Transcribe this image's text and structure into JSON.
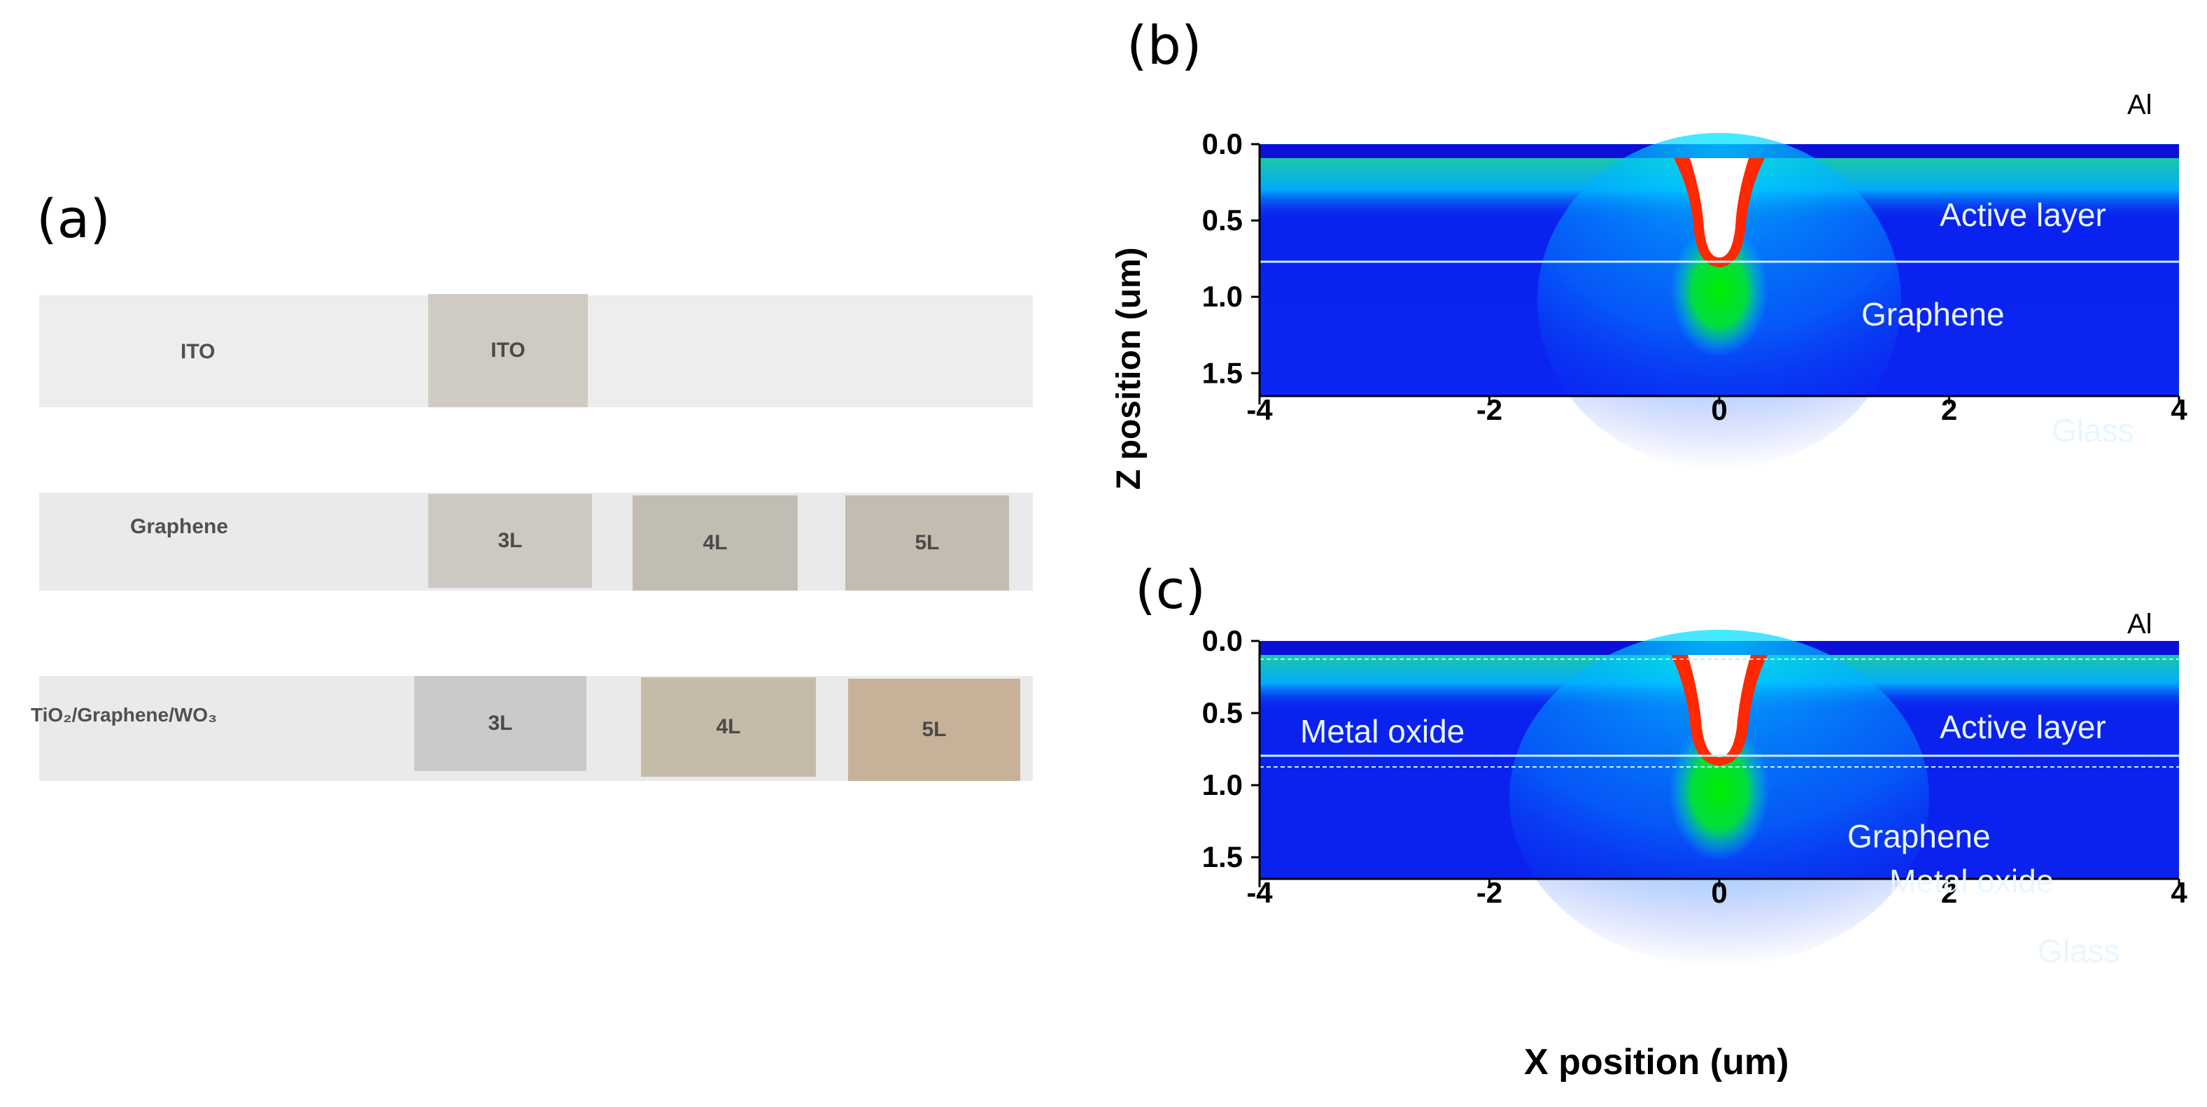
{
  "panels": {
    "a": "(a)",
    "b": "(b)",
    "c": "(c)"
  },
  "photo": {
    "rows": [
      {
        "label": "ITO",
        "samples": [
          "ITO"
        ]
      },
      {
        "label": "Graphene",
        "samples": [
          "3L",
          "4L",
          "5L"
        ]
      },
      {
        "label": "TiO₂/Graphene/WO₃",
        "samples": [
          "3L",
          "4L",
          "5L"
        ]
      }
    ]
  },
  "chart_data": [
    {
      "type": "heatmap",
      "panel": "(b)",
      "ylabel": "Z position (um)",
      "xlim": [
        -4,
        4
      ],
      "ylim": [
        0.0,
        1.65
      ],
      "x_ticks": [
        "-4",
        "-2",
        "0",
        "2",
        "4"
      ],
      "y_ticks": [
        "0.0",
        "0.5",
        "1.0",
        "1.5"
      ],
      "annotations": [
        "Al",
        "Active layer",
        "Graphene",
        "Glass"
      ],
      "colors": {
        "background": "#0a1ef0",
        "mid": "#00c8ff",
        "high": "#00e000",
        "peak": "#ff2a00",
        "max": "#ffffff"
      }
    },
    {
      "type": "heatmap",
      "panel": "(c)",
      "xlabel": "X position (um)",
      "xlim": [
        -4,
        4
      ],
      "ylim": [
        0.0,
        1.65
      ],
      "x_ticks": [
        "-4",
        "-2",
        "0",
        "2",
        "4"
      ],
      "y_ticks": [
        "0.0",
        "0.5",
        "1.0",
        "1.5"
      ],
      "annotations": [
        "Al",
        "Metal oxide",
        "Active layer",
        "Graphene",
        "Metal oxide",
        "Glass"
      ],
      "colors": {
        "background": "#0a1ef0",
        "mid": "#00c8ff",
        "high": "#00e000",
        "peak": "#ff2a00",
        "max": "#ffffff"
      }
    }
  ]
}
